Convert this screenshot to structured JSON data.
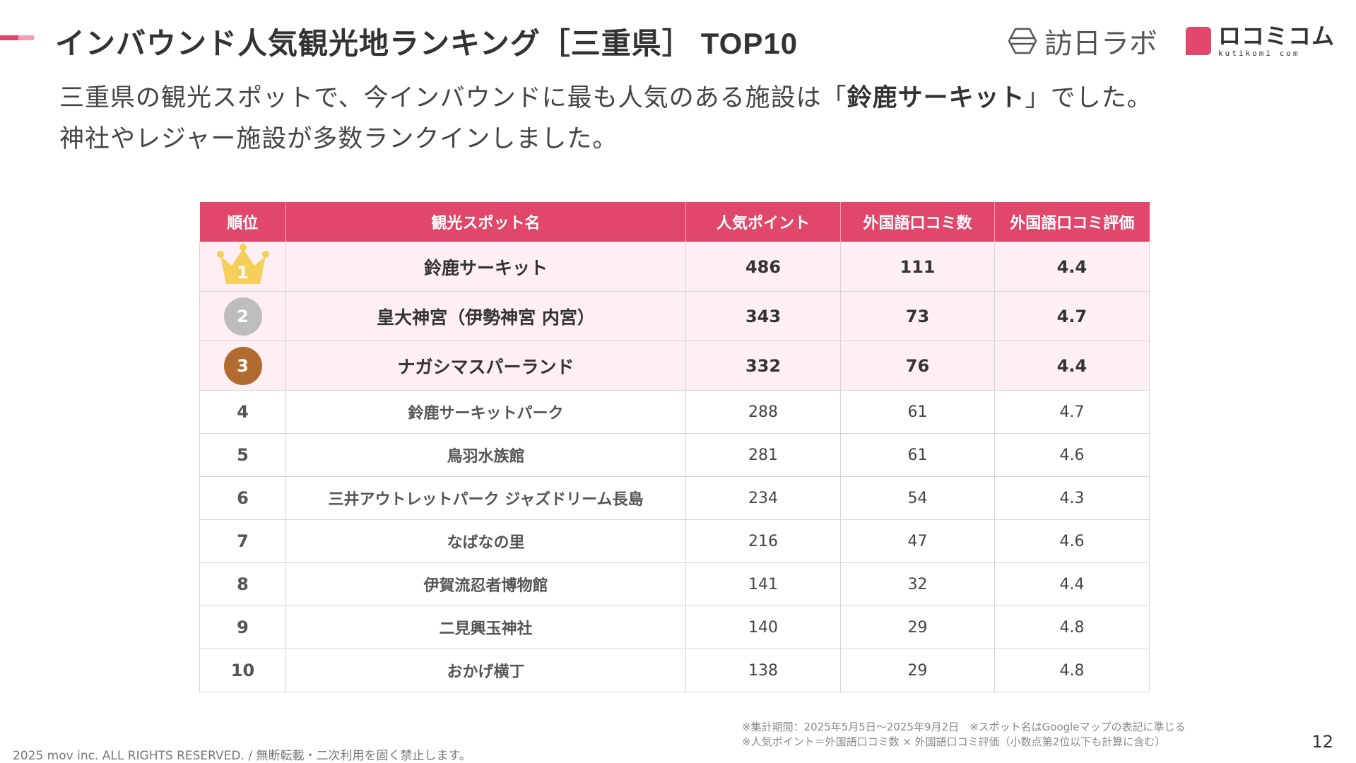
{
  "header": {
    "title": "インバウンド人気観光地ランキング［三重県］",
    "title_suffix": "TOP10",
    "logo_lab_text": "訪日ラボ",
    "logo_kuti_jp": "ロコミコム",
    "logo_kuti_en": "kutikomi com",
    "accent_color": "#e0476b"
  },
  "lead": {
    "line1_before": "三重県の観光スポットで、今インバウンドに最も人気のある施設は「",
    "line1_bold": "鈴鹿サーキット",
    "line1_after": "」でした。",
    "line2": "神社やレジャー施設が多数ランクインしました。"
  },
  "table": {
    "headers": [
      "順位",
      "観光スポット名",
      "人気ポイント",
      "外国語口コミ数",
      "外国語口コミ評価"
    ],
    "rows": [
      {
        "rank": "1",
        "name": "鈴鹿サーキット",
        "points": "486",
        "reviews": "111",
        "rating": "4.4"
      },
      {
        "rank": "2",
        "name": "皇大神宮（伊勢神宮 内宮）",
        "points": "343",
        "reviews": "73",
        "rating": "4.7"
      },
      {
        "rank": "3",
        "name": "ナガシマスパーランド",
        "points": "332",
        "reviews": "76",
        "rating": "4.4"
      },
      {
        "rank": "4",
        "name": "鈴鹿サーキットパーク",
        "points": "288",
        "reviews": "61",
        "rating": "4.7"
      },
      {
        "rank": "5",
        "name": "鳥羽水族館",
        "points": "281",
        "reviews": "61",
        "rating": "4.6"
      },
      {
        "rank": "6",
        "name": "三井アウトレットパーク ジャズドリーム長島",
        "points": "234",
        "reviews": "54",
        "rating": "4.3"
      },
      {
        "rank": "7",
        "name": "なばなの里",
        "points": "216",
        "reviews": "47",
        "rating": "4.6"
      },
      {
        "rank": "8",
        "name": "伊賀流忍者博物館",
        "points": "141",
        "reviews": "32",
        "rating": "4.4"
      },
      {
        "rank": "9",
        "name": "二見興玉神社",
        "points": "140",
        "reviews": "29",
        "rating": "4.8"
      },
      {
        "rank": "10",
        "name": "おかげ横丁",
        "points": "138",
        "reviews": "29",
        "rating": "4.8"
      }
    ]
  },
  "notes": {
    "line1": "※集計期間：2025年5月5日〜2025年9月2日　※スポット名はGoogleマップの表記に準じる",
    "line2": "※人気ポイント＝外国語口コミ数 × 外国語口コミ評価（小数点第2位以下も計算に含む）"
  },
  "footer": {
    "copyright": "2025 mov inc. ALL RIGHTS RESERVED. / 無断転載・二次利用を固く禁止します。",
    "page_number": "12"
  }
}
